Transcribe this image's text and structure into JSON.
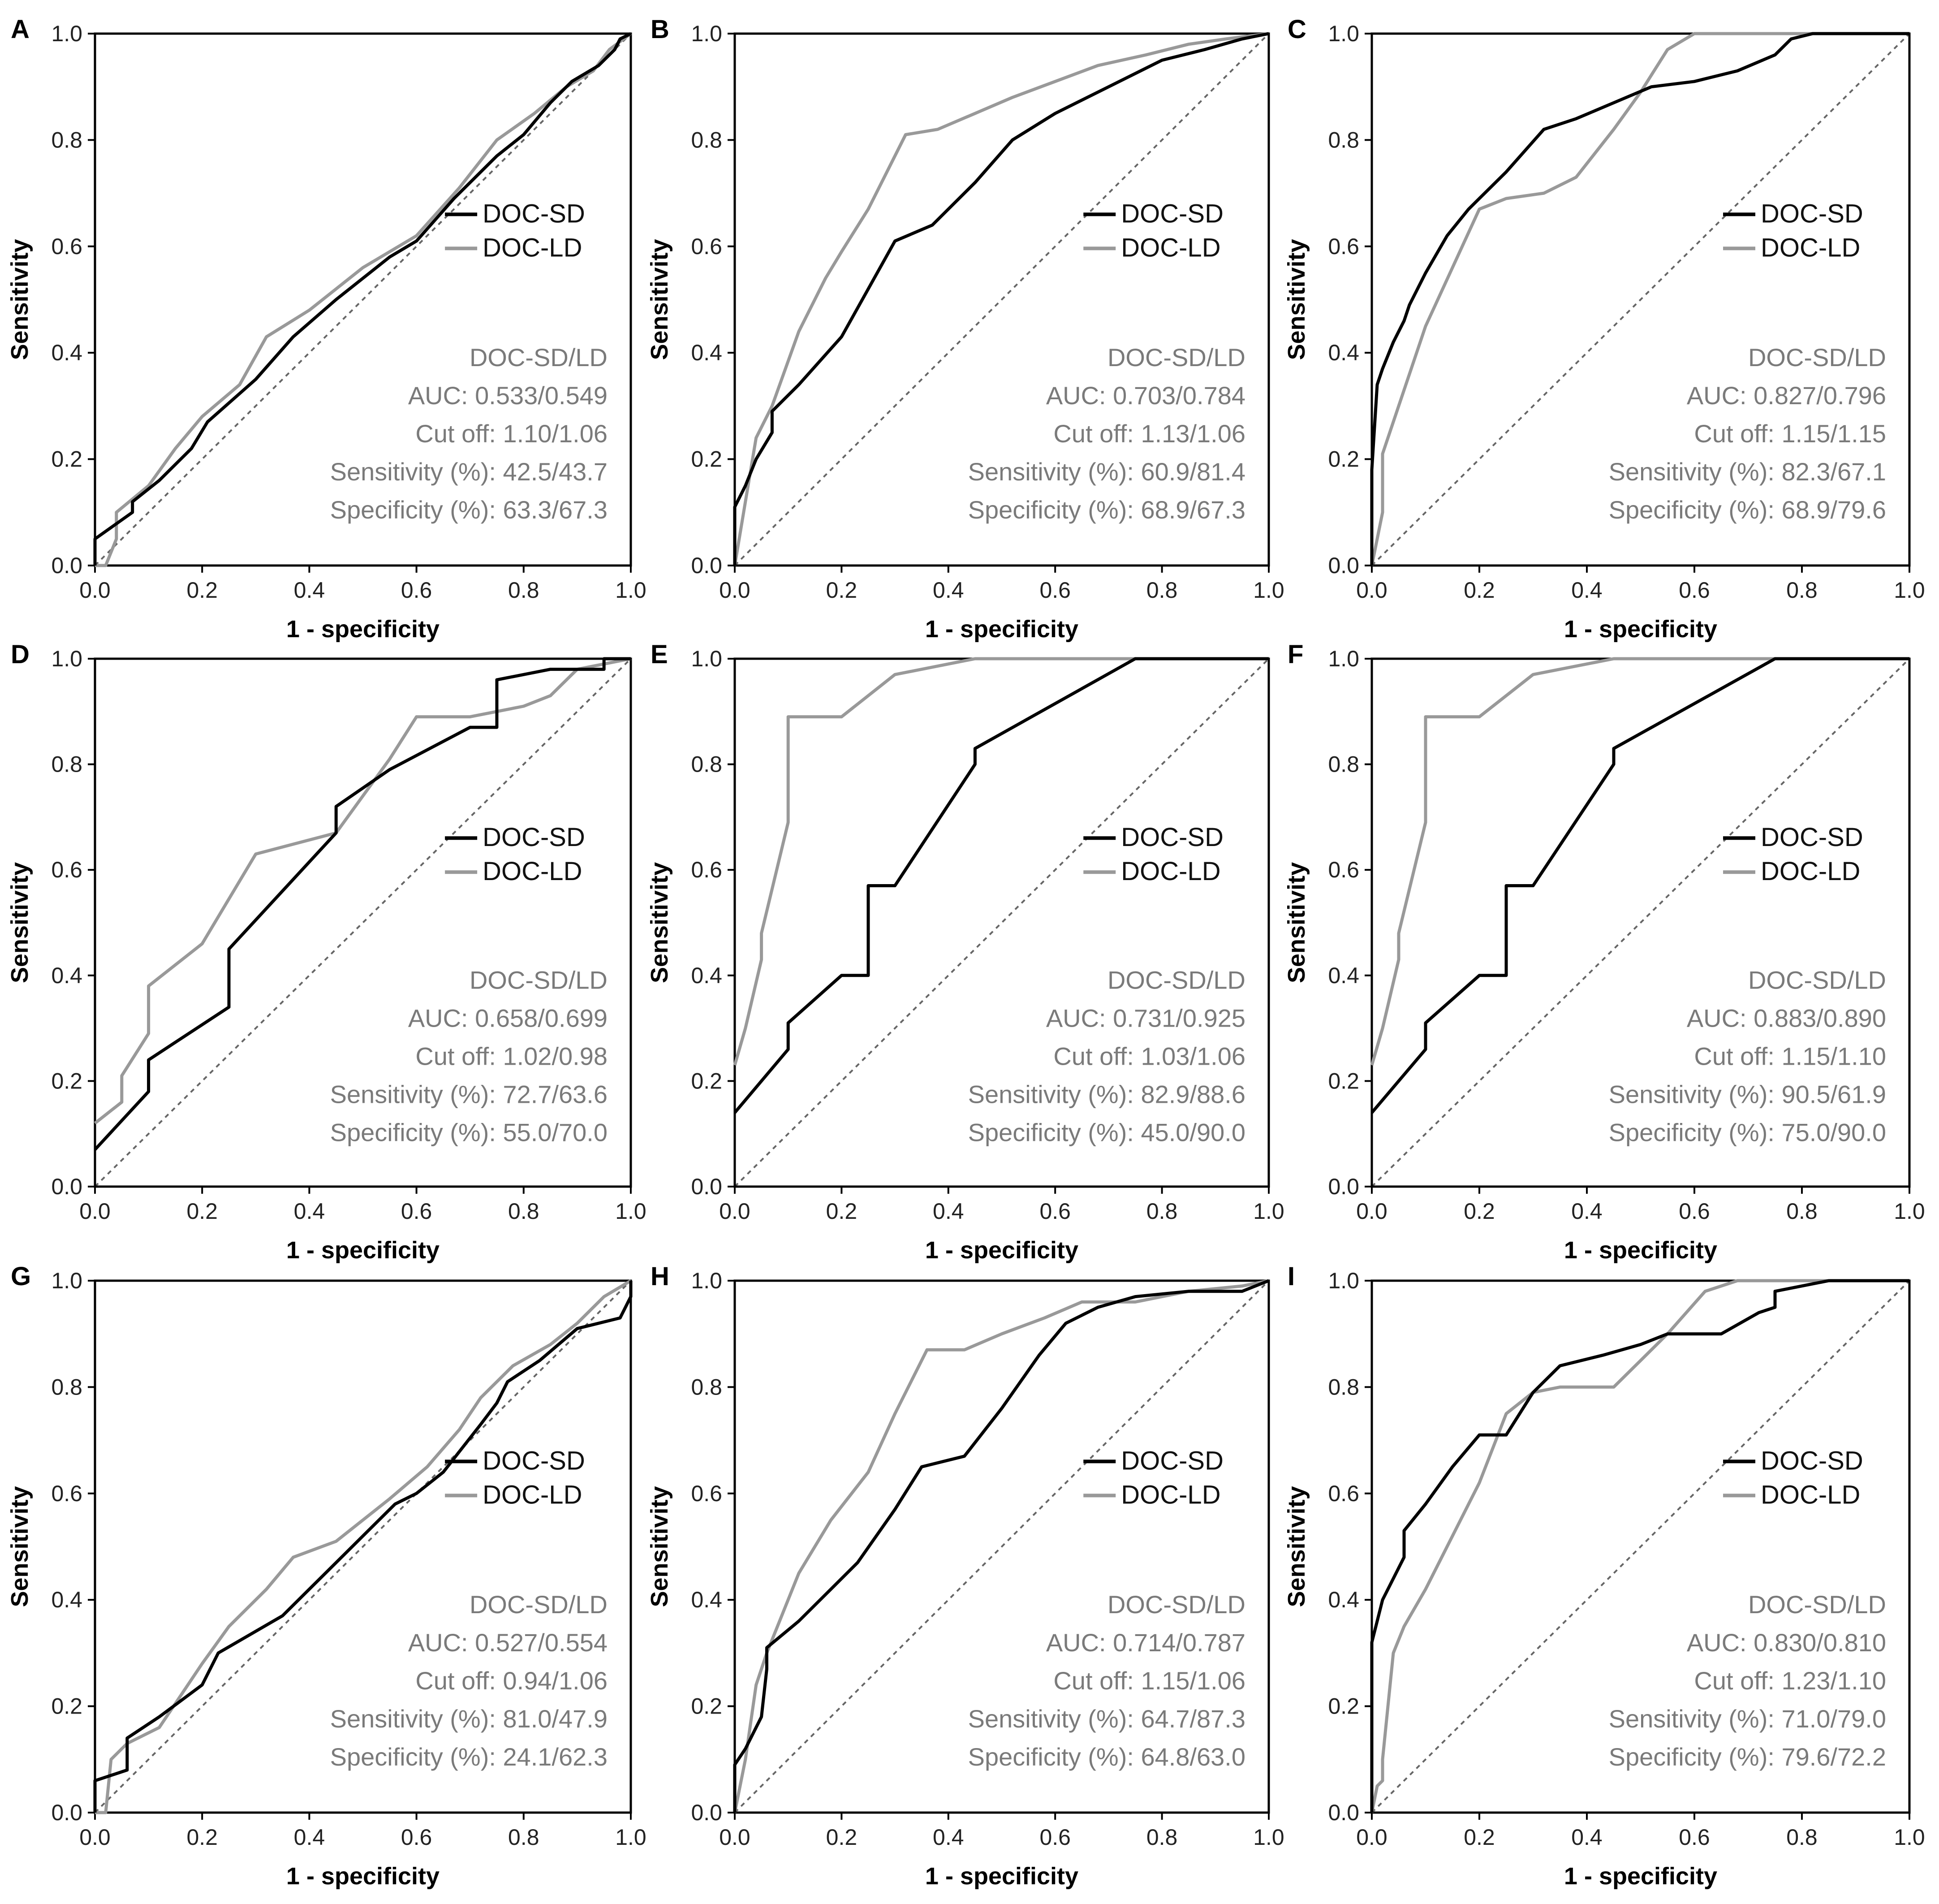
{
  "figure": {
    "legend_entries": [
      {
        "label": "DOC-SD",
        "color": "#000000"
      },
      {
        "label": "DOC-LD",
        "color": "#999999"
      }
    ],
    "reference_line_color": "#666666"
  },
  "chart_data": [
    {
      "panel": "A",
      "type": "line",
      "xlabel": "1 - specificity",
      "ylabel": "Sensitivity",
      "xlim": [
        0,
        1
      ],
      "ylim": [
        0,
        1
      ],
      "xticks": [
        "0.0",
        "0.2",
        "0.4",
        "0.6",
        "0.8",
        "1.0"
      ],
      "yticks": [
        "0.0",
        "0.2",
        "0.4",
        "0.6",
        "0.8",
        "1.0"
      ],
      "legend": [
        "DOC-SD",
        "DOC-LD"
      ],
      "stats": [
        "DOC-SD/LD",
        "AUC: 0.533/0.549",
        "Cut off: 1.10/1.06",
        "Sensitivity (%): 42.5/43.7",
        "Specificity (%): 63.3/67.3"
      ],
      "series": [
        {
          "name": "DOC-SD",
          "x": [
            0,
            0,
            0.07,
            0.07,
            0.12,
            0.18,
            0.21,
            0.3,
            0.37,
            0.45,
            0.55,
            0.6,
            0.67,
            0.75,
            0.8,
            0.85,
            0.89,
            0.94,
            0.97,
            0.98,
            1
          ],
          "y": [
            0,
            0.05,
            0.1,
            0.12,
            0.16,
            0.22,
            0.27,
            0.35,
            0.43,
            0.5,
            0.58,
            0.61,
            0.69,
            0.77,
            0.81,
            0.87,
            0.91,
            0.94,
            0.97,
            0.99,
            1
          ]
        },
        {
          "name": "DOC-LD",
          "x": [
            0,
            0.02,
            0.04,
            0.04,
            0.1,
            0.15,
            0.2,
            0.27,
            0.32,
            0.4,
            0.5,
            0.6,
            0.68,
            0.75,
            0.82,
            0.88,
            0.93,
            0.96,
            1
          ],
          "y": [
            0,
            0,
            0.05,
            0.1,
            0.15,
            0.22,
            0.28,
            0.34,
            0.43,
            0.48,
            0.56,
            0.62,
            0.71,
            0.8,
            0.85,
            0.9,
            0.93,
            0.97,
            1
          ]
        }
      ]
    },
    {
      "panel": "B",
      "type": "line",
      "xlabel": "1 - specificity",
      "ylabel": "Sensitivity",
      "xlim": [
        0,
        1
      ],
      "ylim": [
        0,
        1
      ],
      "xticks": [
        "0.0",
        "0.2",
        "0.4",
        "0.6",
        "0.8",
        "1.0"
      ],
      "yticks": [
        "0.0",
        "0.2",
        "0.4",
        "0.6",
        "0.8",
        "1.0"
      ],
      "legend": [
        "DOC-SD",
        "DOC-LD"
      ],
      "stats": [
        "DOC-SD/LD",
        "AUC: 0.703/0.784",
        "Cut off: 1.13/1.06",
        "Sensitivity (%): 60.9/81.4",
        "Specificity (%): 68.9/67.3"
      ],
      "series": [
        {
          "name": "DOC-SD",
          "x": [
            0,
            0,
            0.02,
            0.04,
            0.07,
            0.07,
            0.12,
            0.2,
            0.25,
            0.3,
            0.37,
            0.45,
            0.52,
            0.6,
            0.7,
            0.8,
            0.88,
            0.95,
            1
          ],
          "y": [
            0,
            0.11,
            0.15,
            0.2,
            0.25,
            0.29,
            0.34,
            0.43,
            0.52,
            0.61,
            0.64,
            0.72,
            0.8,
            0.85,
            0.9,
            0.95,
            0.97,
            0.99,
            1
          ]
        },
        {
          "name": "DOC-LD",
          "x": [
            0,
            0.02,
            0.04,
            0.07,
            0.12,
            0.17,
            0.2,
            0.25,
            0.32,
            0.38,
            0.45,
            0.52,
            0.6,
            0.68,
            0.77,
            0.85,
            0.92,
            1
          ],
          "y": [
            0,
            0.12,
            0.24,
            0.3,
            0.44,
            0.54,
            0.59,
            0.67,
            0.81,
            0.82,
            0.85,
            0.88,
            0.91,
            0.94,
            0.96,
            0.98,
            0.99,
            1
          ]
        }
      ]
    },
    {
      "panel": "C",
      "type": "line",
      "xlabel": "1 - specificity",
      "ylabel": "Sensitivity",
      "xlim": [
        0,
        1
      ],
      "ylim": [
        0,
        1
      ],
      "xticks": [
        "0.0",
        "0.2",
        "0.4",
        "0.6",
        "0.8",
        "1.0"
      ],
      "yticks": [
        "0.0",
        "0.2",
        "0.4",
        "0.6",
        "0.8",
        "1.0"
      ],
      "legend": [
        "DOC-SD",
        "DOC-LD"
      ],
      "stats": [
        "DOC-SD/LD",
        "AUC: 0.827/0.796",
        "Cut off: 1.15/1.15",
        "Sensitivity (%): 82.3/67.1",
        "Specificity (%): 68.9/79.6"
      ],
      "series": [
        {
          "name": "DOC-SD",
          "x": [
            0,
            0,
            0.01,
            0.02,
            0.04,
            0.06,
            0.07,
            0.1,
            0.14,
            0.18,
            0.25,
            0.32,
            0.38,
            0.45,
            0.52,
            0.6,
            0.68,
            0.75,
            0.78,
            0.82,
            1
          ],
          "y": [
            0,
            0.18,
            0.34,
            0.37,
            0.42,
            0.46,
            0.49,
            0.55,
            0.62,
            0.67,
            0.74,
            0.82,
            0.84,
            0.87,
            0.9,
            0.91,
            0.93,
            0.96,
            0.99,
            1,
            1
          ]
        },
        {
          "name": "DOC-LD",
          "x": [
            0,
            0.01,
            0.02,
            0.02,
            0.05,
            0.1,
            0.15,
            0.2,
            0.25,
            0.32,
            0.38,
            0.45,
            0.5,
            0.55,
            0.6,
            1
          ],
          "y": [
            0,
            0.05,
            0.1,
            0.21,
            0.3,
            0.45,
            0.56,
            0.67,
            0.69,
            0.7,
            0.73,
            0.82,
            0.89,
            0.97,
            1,
            1
          ]
        }
      ]
    },
    {
      "panel": "D",
      "type": "line",
      "xlabel": "1 - specificity",
      "ylabel": "Sensitivity",
      "xlim": [
        0,
        1
      ],
      "ylim": [
        0,
        1
      ],
      "xticks": [
        "0.0",
        "0.2",
        "0.4",
        "0.6",
        "0.8",
        "1.0"
      ],
      "yticks": [
        "0.0",
        "0.2",
        "0.4",
        "0.6",
        "0.8",
        "1.0"
      ],
      "legend": [
        "DOC-SD",
        "DOC-LD"
      ],
      "stats": [
        "DOC-SD/LD",
        "AUC: 0.658/0.699",
        "Cut off: 1.02/0.98",
        "Sensitivity (%): 72.7/63.6",
        "Specificity (%): 55.0/70.0"
      ],
      "series": [
        {
          "name": "DOC-SD",
          "x": [
            0,
            0.1,
            0.1,
            0.25,
            0.25,
            0.45,
            0.45,
            0.55,
            0.7,
            0.75,
            0.75,
            0.85,
            0.95,
            0.95,
            1,
            1
          ],
          "y": [
            0.07,
            0.18,
            0.24,
            0.34,
            0.45,
            0.67,
            0.72,
            0.79,
            0.87,
            0.87,
            0.96,
            0.98,
            0.98,
            1,
            1,
            1
          ]
        },
        {
          "name": "DOC-LD",
          "x": [
            0,
            0.05,
            0.05,
            0.1,
            0.1,
            0.2,
            0.3,
            0.45,
            0.55,
            0.6,
            0.7,
            0.8,
            0.85,
            0.9,
            1
          ],
          "y": [
            0.12,
            0.16,
            0.21,
            0.29,
            0.38,
            0.46,
            0.63,
            0.67,
            0.81,
            0.89,
            0.89,
            0.91,
            0.93,
            0.98,
            1
          ]
        }
      ]
    },
    {
      "panel": "E",
      "type": "line",
      "xlabel": "1 - specificity",
      "ylabel": "Sensitivity",
      "xlim": [
        0,
        1
      ],
      "ylim": [
        0,
        1
      ],
      "xticks": [
        "0.0",
        "0.2",
        "0.4",
        "0.6",
        "0.8",
        "1.0"
      ],
      "yticks": [
        "0.0",
        "0.2",
        "0.4",
        "0.6",
        "0.8",
        "1.0"
      ],
      "legend": [
        "DOC-SD",
        "DOC-LD"
      ],
      "stats": [
        "DOC-SD/LD",
        "AUC: 0.731/0.925",
        "Cut off: 1.03/1.06",
        "Sensitivity (%): 82.9/88.6",
        "Specificity (%): 45.0/90.0"
      ],
      "series": [
        {
          "name": "DOC-SD",
          "x": [
            0,
            0.1,
            0.1,
            0.2,
            0.25,
            0.25,
            0.3,
            0.3,
            0.45,
            0.45,
            0.75,
            1
          ],
          "y": [
            0.14,
            0.26,
            0.31,
            0.4,
            0.4,
            0.57,
            0.57,
            0.57,
            0.8,
            0.83,
            1,
            1
          ]
        },
        {
          "name": "DOC-LD",
          "x": [
            0,
            0.02,
            0.05,
            0.05,
            0.1,
            0.1,
            0.2,
            0.3,
            0.45,
            1
          ],
          "y": [
            0.23,
            0.3,
            0.43,
            0.48,
            0.69,
            0.89,
            0.89,
            0.97,
            1,
            1
          ]
        }
      ]
    },
    {
      "panel": "F",
      "type": "line",
      "xlabel": "1 - specificity",
      "ylabel": "Sensitivity",
      "xlim": [
        0,
        1
      ],
      "ylim": [
        0,
        1
      ],
      "xticks": [
        "0.0",
        "0.2",
        "0.4",
        "0.6",
        "0.8",
        "1.0"
      ],
      "yticks": [
        "0.0",
        "0.2",
        "0.4",
        "0.6",
        "0.8",
        "1.0"
      ],
      "legend": [
        "DOC-SD",
        "DOC-LD"
      ],
      "stats": [
        "DOC-SD/LD",
        "AUC: 0.883/0.890",
        "Cut off: 1.15/1.10",
        "Sensitivity (%): 90.5/61.9",
        "Specificity (%): 75.0/90.0"
      ],
      "series": [
        {
          "name": "DOC-SD",
          "x": [
            0,
            0.1,
            0.1,
            0.2,
            0.25,
            0.25,
            0.3,
            0.3,
            0.45,
            0.45,
            0.75,
            1
          ],
          "y": [
            0.14,
            0.26,
            0.31,
            0.4,
            0.4,
            0.57,
            0.57,
            0.57,
            0.8,
            0.83,
            1,
            1
          ]
        },
        {
          "name": "DOC-LD",
          "x": [
            0,
            0.02,
            0.05,
            0.05,
            0.1,
            0.1,
            0.2,
            0.3,
            0.45,
            1
          ],
          "y": [
            0.23,
            0.3,
            0.43,
            0.48,
            0.69,
            0.89,
            0.89,
            0.97,
            1,
            1
          ]
        }
      ]
    },
    {
      "panel": "G",
      "type": "line",
      "xlabel": "1 - specificity",
      "ylabel": "Sensitivity",
      "xlim": [
        0,
        1
      ],
      "ylim": [
        0,
        1
      ],
      "xticks": [
        "0.0",
        "0.2",
        "0.4",
        "0.6",
        "0.8",
        "1.0"
      ],
      "yticks": [
        "0.0",
        "0.2",
        "0.4",
        "0.6",
        "0.8",
        "1.0"
      ],
      "legend": [
        "DOC-SD",
        "DOC-LD"
      ],
      "stats": [
        "DOC-SD/LD",
        "AUC: 0.527/0.554",
        "Cut off: 0.94/1.06",
        "Sensitivity (%): 81.0/47.9",
        "Specificity (%): 24.1/62.3"
      ],
      "series": [
        {
          "name": "DOC-SD",
          "x": [
            0,
            0,
            0.06,
            0.06,
            0.12,
            0.2,
            0.23,
            0.35,
            0.45,
            0.56,
            0.6,
            0.65,
            0.72,
            0.75,
            0.77,
            0.83,
            0.9,
            0.98,
            1,
            1
          ],
          "y": [
            0,
            0.06,
            0.08,
            0.14,
            0.18,
            0.24,
            0.3,
            0.37,
            0.47,
            0.58,
            0.6,
            0.64,
            0.73,
            0.77,
            0.81,
            0.85,
            0.91,
            0.93,
            0.97,
            1
          ]
        },
        {
          "name": "DOC-LD",
          "x": [
            0,
            0.02,
            0.03,
            0.06,
            0.12,
            0.2,
            0.25,
            0.32,
            0.37,
            0.45,
            0.55,
            0.62,
            0.68,
            0.72,
            0.78,
            0.85,
            0.9,
            0.95,
            1
          ],
          "y": [
            0,
            0,
            0.1,
            0.13,
            0.16,
            0.28,
            0.35,
            0.42,
            0.48,
            0.51,
            0.59,
            0.65,
            0.72,
            0.78,
            0.84,
            0.88,
            0.92,
            0.97,
            1
          ]
        }
      ]
    },
    {
      "panel": "H",
      "type": "line",
      "xlabel": "1 - specificity",
      "ylabel": "Sensitivity",
      "xlim": [
        0,
        1
      ],
      "ylim": [
        0,
        1
      ],
      "xticks": [
        "0.0",
        "0.2",
        "0.4",
        "0.6",
        "0.8",
        "1.0"
      ],
      "yticks": [
        "0.0",
        "0.2",
        "0.4",
        "0.6",
        "0.8",
        "1.0"
      ],
      "legend": [
        "DOC-SD",
        "DOC-LD"
      ],
      "stats": [
        "DOC-SD/LD",
        "AUC: 0.714/0.787",
        "Cut off: 1.15/1.06",
        "Sensitivity (%): 64.7/87.3",
        "Specificity (%): 64.8/63.0"
      ],
      "series": [
        {
          "name": "DOC-SD",
          "x": [
            0,
            0,
            0.02,
            0.05,
            0.06,
            0.06,
            0.12,
            0.18,
            0.23,
            0.3,
            0.35,
            0.43,
            0.5,
            0.57,
            0.62,
            0.68,
            0.75,
            0.85,
            0.95,
            1
          ],
          "y": [
            0,
            0.09,
            0.12,
            0.18,
            0.27,
            0.31,
            0.36,
            0.42,
            0.47,
            0.57,
            0.65,
            0.67,
            0.76,
            0.86,
            0.92,
            0.95,
            0.97,
            0.98,
            0.98,
            1
          ]
        },
        {
          "name": "DOC-LD",
          "x": [
            0,
            0.02,
            0.04,
            0.06,
            0.12,
            0.18,
            0.25,
            0.3,
            0.36,
            0.43,
            0.5,
            0.58,
            0.65,
            0.75,
            0.85,
            0.95,
            1
          ],
          "y": [
            0,
            0.1,
            0.24,
            0.3,
            0.45,
            0.55,
            0.64,
            0.75,
            0.87,
            0.87,
            0.9,
            0.93,
            0.96,
            0.96,
            0.98,
            0.99,
            1
          ]
        }
      ]
    },
    {
      "panel": "I",
      "type": "line",
      "xlabel": "1 - specificity",
      "ylabel": "Sensitivity",
      "xlim": [
        0,
        1
      ],
      "ylim": [
        0,
        1
      ],
      "xticks": [
        "0.0",
        "0.2",
        "0.4",
        "0.6",
        "0.8",
        "1.0"
      ],
      "yticks": [
        "0.0",
        "0.2",
        "0.4",
        "0.6",
        "0.8",
        "1.0"
      ],
      "legend": [
        "DOC-SD",
        "DOC-LD"
      ],
      "stats": [
        "DOC-SD/LD",
        "AUC: 0.830/0.810",
        "Cut off: 1.23/1.10",
        "Sensitivity (%): 71.0/79.0",
        "Specificity (%): 79.6/72.2"
      ],
      "series": [
        {
          "name": "DOC-SD",
          "x": [
            0,
            0,
            0.01,
            0.02,
            0.04,
            0.06,
            0.06,
            0.1,
            0.15,
            0.2,
            0.25,
            0.3,
            0.35,
            0.43,
            0.5,
            0.55,
            0.65,
            0.72,
            0.75,
            0.75,
            0.85,
            1
          ],
          "y": [
            0,
            0.32,
            0.36,
            0.4,
            0.44,
            0.48,
            0.53,
            0.58,
            0.65,
            0.71,
            0.71,
            0.79,
            0.84,
            0.86,
            0.88,
            0.9,
            0.9,
            0.94,
            0.95,
            0.98,
            1,
            1
          ]
        },
        {
          "name": "DOC-LD",
          "x": [
            0,
            0.01,
            0.02,
            0.02,
            0.04,
            0.06,
            0.1,
            0.14,
            0.2,
            0.25,
            0.3,
            0.35,
            0.45,
            0.5,
            0.55,
            0.62,
            0.68,
            1
          ],
          "y": [
            0,
            0.05,
            0.06,
            0.1,
            0.3,
            0.35,
            0.42,
            0.5,
            0.62,
            0.75,
            0.79,
            0.8,
            0.8,
            0.85,
            0.9,
            0.98,
            1,
            1
          ]
        }
      ]
    }
  ]
}
